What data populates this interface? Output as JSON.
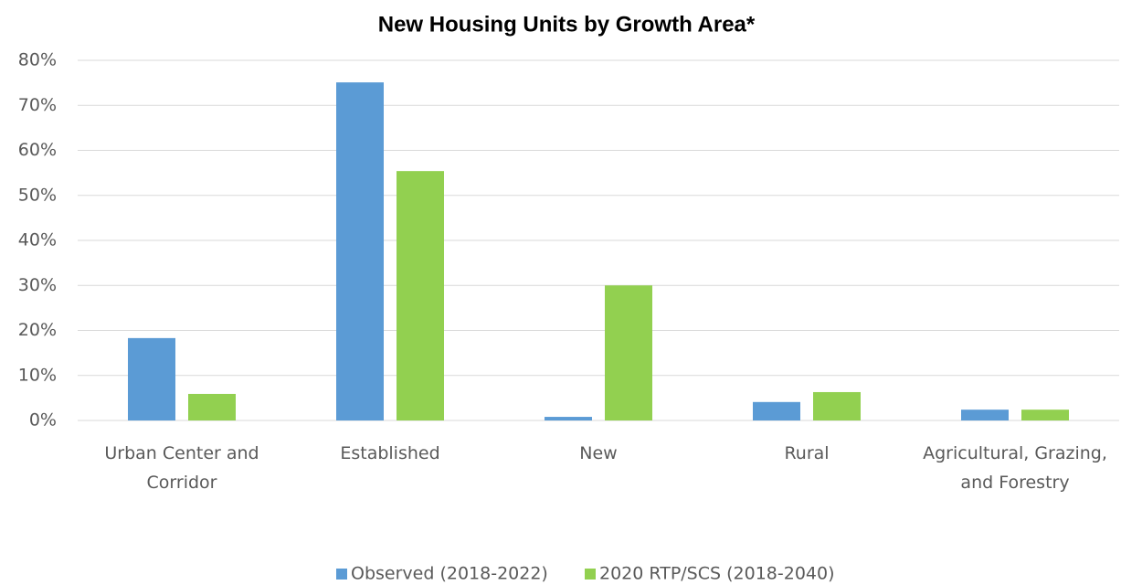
{
  "chart_data": {
    "type": "bar",
    "title": "New Housing Units by Growth Area*",
    "categories": [
      "Urban Center and Corridor",
      "Established",
      "New",
      "Rural",
      "Agricultural, Grazing, and Forestry"
    ],
    "series": [
      {
        "name": "Observed (2018-2022)",
        "color": "#5b9bd5",
        "values": [
          18.3,
          75.1,
          0.8,
          4.1,
          2.4
        ]
      },
      {
        "name": "2020 RTP/SCS (2018-2040)",
        "color": "#92d050",
        "values": [
          5.9,
          55.4,
          30,
          6.3,
          2.4
        ]
      }
    ],
    "ylim": [
      0,
      80
    ],
    "yticks": [
      {
        "value": 0,
        "label": "0%"
      },
      {
        "value": 10,
        "label": "10%"
      },
      {
        "value": 20,
        "label": "20%"
      },
      {
        "value": 30,
        "label": "30%"
      },
      {
        "value": 40,
        "label": "40%"
      },
      {
        "value": 50,
        "label": "50%"
      },
      {
        "value": 60,
        "label": "60%"
      },
      {
        "value": 70,
        "label": "70%"
      },
      {
        "value": 80,
        "label": "80%"
      }
    ],
    "grid": true,
    "legend": "bottom"
  }
}
